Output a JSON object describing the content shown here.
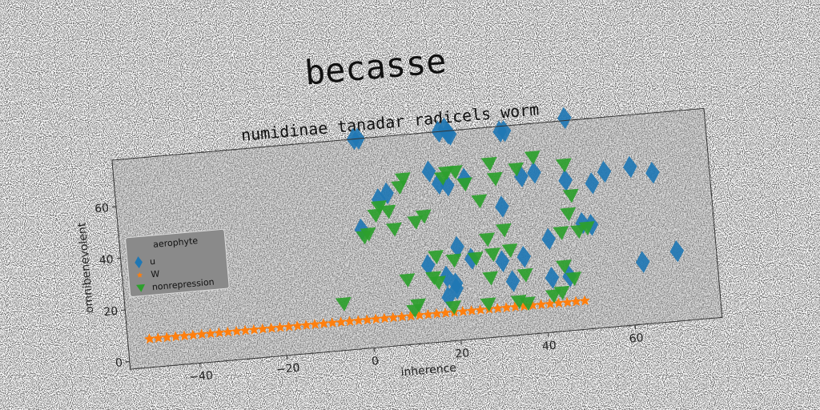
{
  "chart_data": {
    "type": "scatter",
    "suptitle": "becasse",
    "title": "numidinae tanadar radicels worm",
    "xlabel": "inherence",
    "ylabel": "omnibenevolent",
    "xlim": [
      -56,
      80
    ],
    "ylim": [
      -3,
      78
    ],
    "xticks": [
      -40,
      -20,
      0,
      20,
      40,
      60
    ],
    "yticks": [
      0,
      20,
      40,
      60
    ],
    "grid": false,
    "rotation_deg": -5,
    "legend": {
      "title": "aerophyte",
      "placement": "center-left"
    },
    "series": [
      {
        "name": "u",
        "marker": "diamond",
        "color": "#1f77b4",
        "points": [
          [
            -0.5,
            78
          ],
          [
            0.5,
            78
          ],
          [
            19,
            78
          ],
          [
            20.5,
            79
          ],
          [
            21,
            77
          ],
          [
            21.5,
            76.5
          ],
          [
            33,
            76
          ],
          [
            34,
            76
          ],
          [
            48,
            79
          ],
          [
            16,
            63
          ],
          [
            18,
            58
          ],
          [
            20,
            57
          ],
          [
            24,
            59
          ],
          [
            37,
            58
          ],
          [
            40,
            59
          ],
          [
            47,
            55
          ],
          [
            53,
            53
          ],
          [
            56,
            57
          ],
          [
            62,
            58
          ],
          [
            67,
            55
          ],
          [
            6,
            56
          ],
          [
            4,
            54
          ],
          [
            -0.5,
            43
          ],
          [
            32,
            47
          ],
          [
            50,
            38
          ],
          [
            52,
            37
          ],
          [
            21,
            33
          ],
          [
            14,
            27
          ],
          [
            24,
            28
          ],
          [
            31,
            26
          ],
          [
            36,
            27
          ],
          [
            42,
            33
          ],
          [
            18,
            22
          ],
          [
            20,
            19
          ],
          [
            33,
            18
          ],
          [
            42,
            18
          ],
          [
            46,
            18
          ],
          [
            63,
            21
          ],
          [
            71,
            24
          ],
          [
            18,
            14
          ],
          [
            20,
            17
          ]
        ]
      },
      {
        "name": "W",
        "marker": "star",
        "color": "#ff7f0e",
        "points": [
          [
            -51,
            8
          ],
          [
            -49,
            8
          ],
          [
            -47,
            8
          ],
          [
            -45,
            8
          ],
          [
            -43,
            8
          ],
          [
            -41,
            8
          ],
          [
            -39,
            8
          ],
          [
            -37,
            8
          ],
          [
            -35,
            8
          ],
          [
            -33,
            8
          ],
          [
            -31,
            8
          ],
          [
            -29,
            8
          ],
          [
            -27,
            8
          ],
          [
            -25,
            8
          ],
          [
            -23,
            8
          ],
          [
            -21,
            8
          ],
          [
            -19,
            8
          ],
          [
            -17,
            8
          ],
          [
            -15,
            8
          ],
          [
            -13,
            8
          ],
          [
            -11,
            8
          ],
          [
            -9,
            8
          ],
          [
            -7,
            8
          ],
          [
            -5,
            8
          ],
          [
            -3,
            8
          ],
          [
            -1,
            8
          ],
          [
            1,
            8
          ],
          [
            3,
            8
          ],
          [
            5,
            8
          ],
          [
            7,
            8
          ],
          [
            9,
            8
          ],
          [
            11,
            8
          ],
          [
            13,
            8
          ],
          [
            15,
            8
          ],
          [
            17,
            8
          ],
          [
            19,
            8
          ],
          [
            21,
            8
          ],
          [
            23,
            8
          ],
          [
            25,
            8
          ],
          [
            27,
            8
          ],
          [
            29,
            8
          ],
          [
            31,
            8
          ],
          [
            33,
            8
          ],
          [
            35,
            8
          ],
          [
            37,
            8
          ],
          [
            39,
            8
          ],
          [
            41,
            8
          ],
          [
            43,
            8
          ],
          [
            45,
            8
          ],
          [
            47,
            8
          ],
          [
            49,
            8
          ]
        ]
      },
      {
        "name": "nonrepression",
        "marker": "triangle-down",
        "color": "#2ca02c",
        "points": [
          [
            -6,
            15
          ],
          [
            0,
            40
          ],
          [
            1,
            41
          ],
          [
            3,
            48
          ],
          [
            4,
            51
          ],
          [
            6,
            49
          ],
          [
            7,
            42
          ],
          [
            9,
            58
          ],
          [
            10,
            61
          ],
          [
            12,
            44
          ],
          [
            14,
            46
          ],
          [
            19,
            60
          ],
          [
            20,
            62
          ],
          [
            22,
            62
          ],
          [
            24,
            57
          ],
          [
            27,
            50
          ],
          [
            30,
            64
          ],
          [
            31,
            58
          ],
          [
            36,
            61
          ],
          [
            40,
            65
          ],
          [
            47,
            61
          ],
          [
            48,
            49
          ],
          [
            47,
            42
          ],
          [
            45,
            35
          ],
          [
            28,
            35
          ],
          [
            32,
            38
          ],
          [
            33,
            30
          ],
          [
            49,
            35
          ],
          [
            51,
            36
          ],
          [
            16,
            30
          ],
          [
            20,
            28
          ],
          [
            25,
            28
          ],
          [
            29,
            29
          ],
          [
            9,
            22
          ],
          [
            15,
            22
          ],
          [
            16,
            20
          ],
          [
            28,
            20
          ],
          [
            36,
            20
          ],
          [
            45,
            22
          ],
          [
            47,
            17
          ],
          [
            10,
            10
          ],
          [
            11,
            12
          ],
          [
            19,
            10
          ],
          [
            27,
            10
          ],
          [
            34,
            10
          ],
          [
            36,
            9
          ],
          [
            42,
            11
          ],
          [
            44,
            12
          ]
        ]
      }
    ]
  }
}
